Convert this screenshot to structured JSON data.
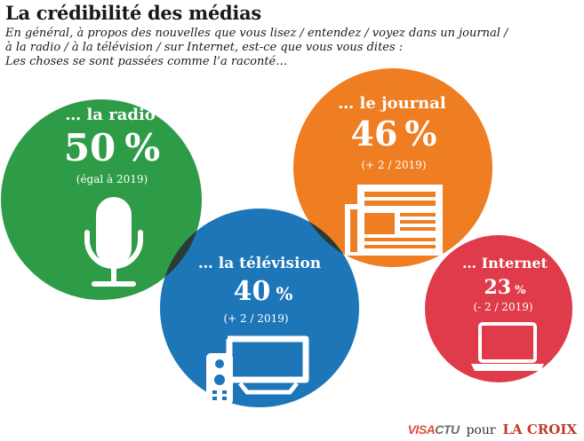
{
  "title": "La crédibilité des médias",
  "subtitle": [
    "En général, à propos des nouvelles que vous lisez / entendez / voyez dans un journal /",
    "à la radio / à la télévision / sur Internet, est-ce que vous vous dites :",
    "Les choses se sont passées comme l’a raconté…"
  ],
  "chart_data": {
    "type": "bubble",
    "unit": "%",
    "items": [
      {
        "key": "radio",
        "label": "… la radio",
        "value": 50,
        "value_text": "50",
        "change_text": "(égal à 2019)",
        "color": "#2e9b47",
        "icon": "microphone-icon"
      },
      {
        "key": "journal",
        "label": "… le journal",
        "value": 46,
        "value_text": "46",
        "change_text": "(+ 2 / 2019)",
        "color": "#ef7d22",
        "icon": "newspaper-icon"
      },
      {
        "key": "television",
        "label": "… la télévision",
        "value": 40,
        "value_text": "40",
        "change_text": "(+ 2 / 2019)",
        "color": "#1d76b8",
        "icon": "tv-remote-icon"
      },
      {
        "key": "internet",
        "label": "… Internet",
        "value": 23,
        "value_text": "23",
        "change_text": "(- 2 / 2019)",
        "color": "#df3b4a",
        "icon": "laptop-icon"
      }
    ],
    "overlap_color": "#2a3b36"
  },
  "credit": {
    "brand_part1": "VISA",
    "brand_part2": "CTU",
    "joiner": "pour",
    "publisher": "LA CROIX"
  }
}
